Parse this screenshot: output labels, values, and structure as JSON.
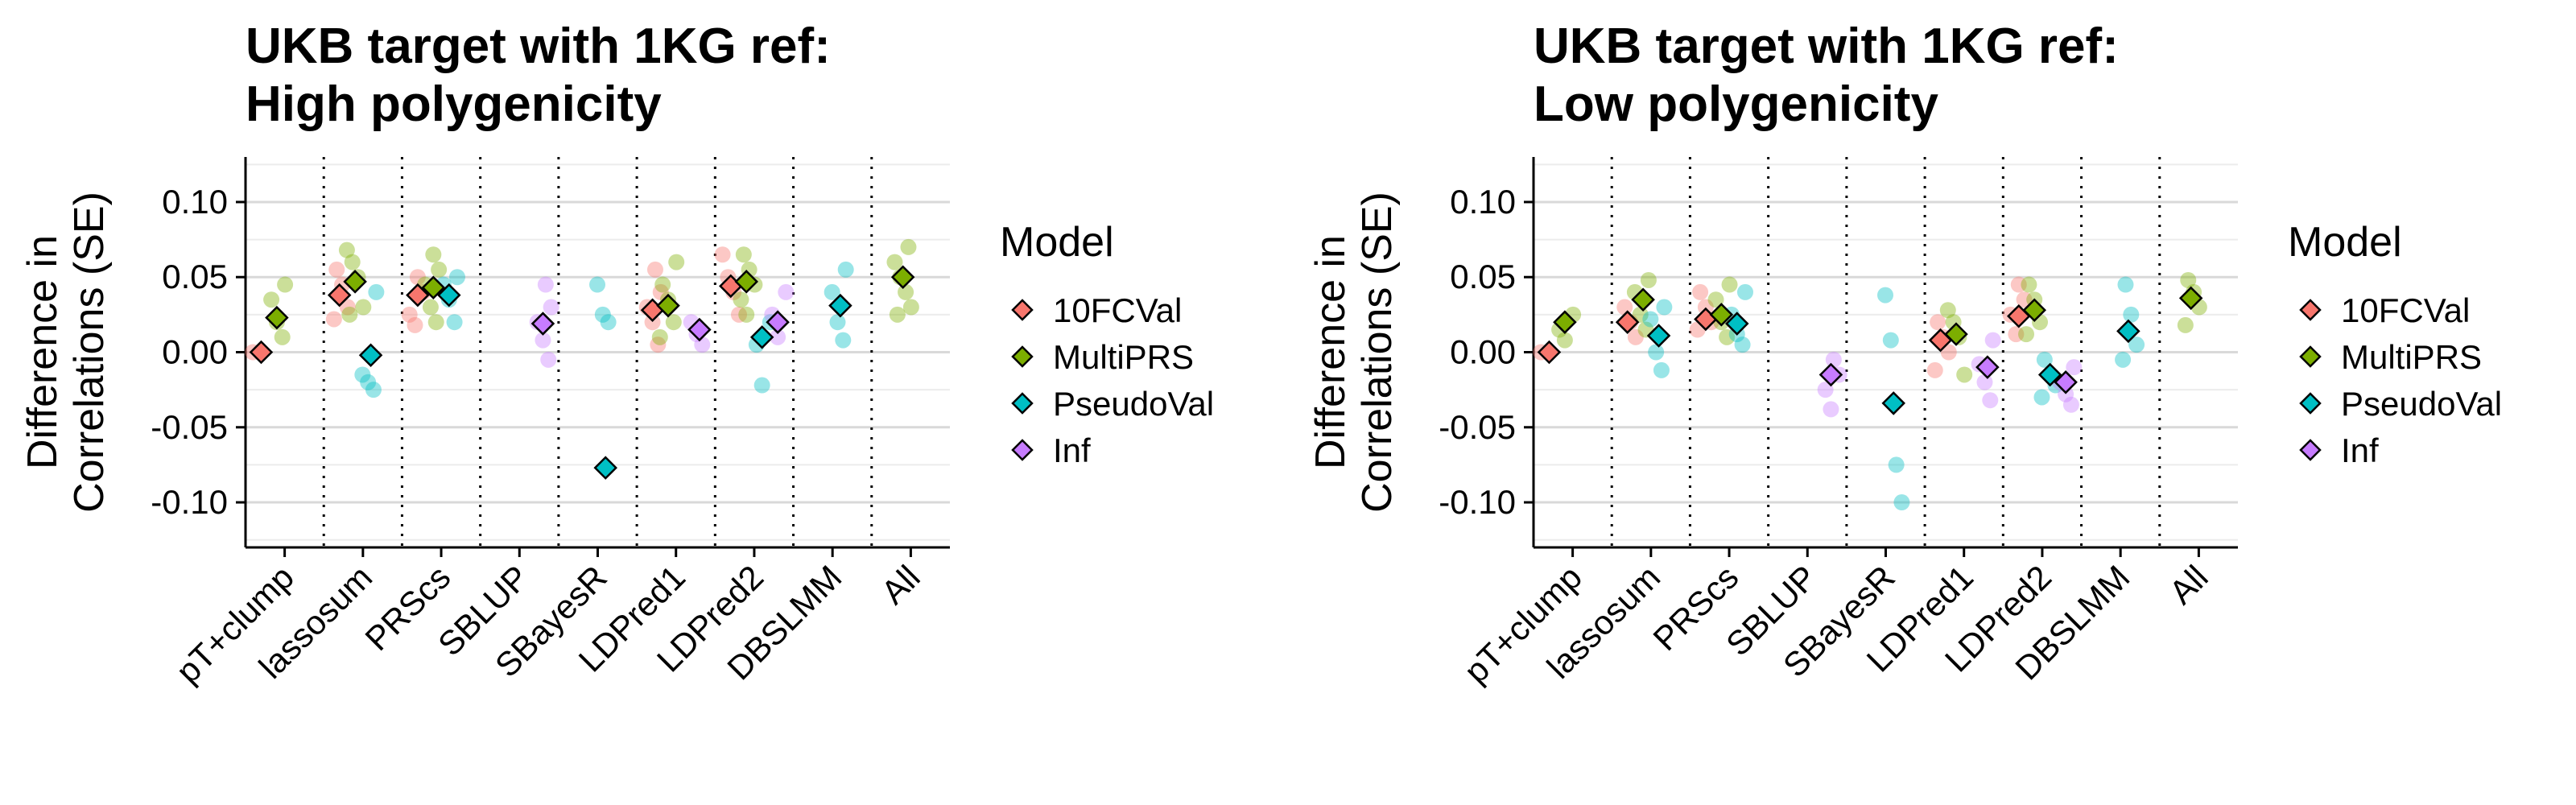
{
  "colors": {
    "10FCVal": "#F8766D",
    "MultiPRS": "#7CAE00",
    "PseudoVal": "#00BFC4",
    "Inf": "#C77CFF"
  },
  "chart_data": [
    {
      "type": "scatter",
      "title_lines": [
        "UKB target with 1KG ref:",
        "High polygenicity"
      ],
      "ylabel_lines": [
        "Difference in",
        "Correlations (SE)"
      ],
      "categories": [
        "pT+clump",
        "lassosum",
        "PRScs",
        "SBLUP",
        "SBayesR",
        "LDPred1",
        "LDPred2",
        "DBSLMM",
        "All"
      ],
      "ylim": [
        -0.13,
        0.13
      ],
      "yticks": [
        0.1,
        0.05,
        0.0,
        -0.05,
        -0.1
      ],
      "ytick_labels": [
        "0.10",
        "0.05",
        "0.00",
        "-0.05",
        "-0.10"
      ],
      "legend": {
        "title": "Model",
        "entries": [
          "10FCVal",
          "MultiPRS",
          "PseudoVal",
          "Inf"
        ],
        "position": "right"
      },
      "series": [
        {
          "name": "10FCVal",
          "x": [
            1,
            2,
            3,
            6,
            7
          ],
          "y": [
            0.0,
            0.038,
            0.038,
            0.028,
            0.044
          ],
          "se": [
            0.004,
            0.004,
            0.004,
            0.004,
            0.004
          ],
          "points": [
            [
              1,
              0.0
            ],
            [
              2,
              0.055
            ],
            [
              2,
              0.045
            ],
            [
              2,
              0.03
            ],
            [
              2,
              0.022
            ],
            [
              3,
              0.05
            ],
            [
              3,
              0.04
            ],
            [
              3,
              0.025
            ],
            [
              3,
              0.018
            ],
            [
              6,
              0.055
            ],
            [
              6,
              0.04
            ],
            [
              6,
              0.03
            ],
            [
              6,
              0.02
            ],
            [
              6,
              0.005
            ],
            [
              7,
              0.065
            ],
            [
              7,
              0.05
            ],
            [
              7,
              0.04
            ],
            [
              7,
              0.025
            ]
          ]
        },
        {
          "name": "MultiPRS",
          "x": [
            1,
            2,
            3,
            6,
            7,
            9
          ],
          "y": [
            0.023,
            0.047,
            0.043,
            0.031,
            0.047,
            0.05
          ],
          "se": [
            0.004,
            0.004,
            0.004,
            0.004,
            0.004,
            0.004
          ],
          "points": [
            [
              1,
              0.045
            ],
            [
              1,
              0.035
            ],
            [
              1,
              0.02
            ],
            [
              1,
              0.01
            ],
            [
              2,
              0.068
            ],
            [
              2,
              0.06
            ],
            [
              2,
              0.05
            ],
            [
              2,
              0.03
            ],
            [
              2,
              0.025
            ],
            [
              3,
              0.065
            ],
            [
              3,
              0.055
            ],
            [
              3,
              0.045
            ],
            [
              3,
              0.03
            ],
            [
              3,
              0.02
            ],
            [
              6,
              0.06
            ],
            [
              6,
              0.045
            ],
            [
              6,
              0.035
            ],
            [
              6,
              0.02
            ],
            [
              6,
              0.01
            ],
            [
              7,
              0.065
            ],
            [
              7,
              0.055
            ],
            [
              7,
              0.045
            ],
            [
              7,
              0.035
            ],
            [
              7,
              0.025
            ],
            [
              9,
              0.07
            ],
            [
              9,
              0.06
            ],
            [
              9,
              0.05
            ],
            [
              9,
              0.04
            ],
            [
              9,
              0.03
            ],
            [
              9,
              0.025
            ]
          ]
        },
        {
          "name": "PseudoVal",
          "x": [
            2,
            3,
            5,
            7,
            8
          ],
          "y": [
            -0.002,
            0.038,
            -0.077,
            0.01,
            0.031
          ],
          "se": [
            0.004,
            0.004,
            0.004,
            0.004,
            0.004
          ],
          "points": [
            [
              2,
              0.04
            ],
            [
              2,
              -0.015
            ],
            [
              2,
              -0.02
            ],
            [
              2,
              -0.025
            ],
            [
              3,
              0.05
            ],
            [
              3,
              0.045
            ],
            [
              3,
              0.035
            ],
            [
              3,
              0.02
            ],
            [
              5,
              0.045
            ],
            [
              5,
              0.025
            ],
            [
              5,
              0.02
            ],
            [
              7,
              0.02
            ],
            [
              7,
              0.005
            ],
            [
              7,
              -0.022
            ],
            [
              8,
              0.055
            ],
            [
              8,
              0.04
            ],
            [
              8,
              0.02
            ],
            [
              8,
              0.008
            ]
          ]
        },
        {
          "name": "Inf",
          "x": [
            4,
            6,
            7
          ],
          "y": [
            0.019,
            0.015,
            0.02
          ],
          "se": [
            0.004,
            0.004,
            0.004
          ],
          "points": [
            [
              4,
              0.045
            ],
            [
              4,
              0.03
            ],
            [
              4,
              0.02
            ],
            [
              4,
              0.008
            ],
            [
              4,
              -0.005
            ],
            [
              6,
              0.02
            ],
            [
              6,
              0.012
            ],
            [
              6,
              0.005
            ],
            [
              7,
              0.04
            ],
            [
              7,
              0.025
            ],
            [
              7,
              0.01
            ]
          ]
        }
      ]
    },
    {
      "type": "scatter",
      "title_lines": [
        "UKB target with 1KG ref:",
        "Low polygenicity"
      ],
      "ylabel_lines": [
        "Difference in",
        "Correlations (SE)"
      ],
      "categories": [
        "pT+clump",
        "lassosum",
        "PRScs",
        "SBLUP",
        "SBayesR",
        "LDPred1",
        "LDPred2",
        "DBSLMM",
        "All"
      ],
      "ylim": [
        -0.13,
        0.13
      ],
      "yticks": [
        0.1,
        0.05,
        0.0,
        -0.05,
        -0.1
      ],
      "ytick_labels": [
        "0.10",
        "0.05",
        "0.00",
        "-0.05",
        "-0.10"
      ],
      "legend": {
        "title": "Model",
        "entries": [
          "10FCVal",
          "MultiPRS",
          "PseudoVal",
          "Inf"
        ],
        "position": "right"
      },
      "series": [
        {
          "name": "10FCVal",
          "x": [
            1,
            2,
            3,
            6,
            7
          ],
          "y": [
            0.0,
            0.02,
            0.022,
            0.008,
            0.024
          ],
          "se": [
            0.006,
            0.006,
            0.006,
            0.006,
            0.006
          ],
          "points": [
            [
              1,
              0.0
            ],
            [
              2,
              0.03
            ],
            [
              2,
              0.02
            ],
            [
              2,
              0.01
            ],
            [
              3,
              0.04
            ],
            [
              3,
              0.03
            ],
            [
              3,
              0.02
            ],
            [
              3,
              0.015
            ],
            [
              6,
              0.02
            ],
            [
              6,
              0.01
            ],
            [
              6,
              0.0
            ],
            [
              6,
              -0.012
            ],
            [
              7,
              0.045
            ],
            [
              7,
              0.035
            ],
            [
              7,
              0.025
            ],
            [
              7,
              0.012
            ]
          ]
        },
        {
          "name": "MultiPRS",
          "x": [
            1,
            2,
            3,
            6,
            7,
            9
          ],
          "y": [
            0.02,
            0.035,
            0.025,
            0.012,
            0.028,
            0.036
          ],
          "se": [
            0.006,
            0.006,
            0.006,
            0.006,
            0.006,
            0.006
          ],
          "points": [
            [
              1,
              0.025
            ],
            [
              1,
              0.015
            ],
            [
              1,
              0.008
            ],
            [
              2,
              0.048
            ],
            [
              2,
              0.04
            ],
            [
              2,
              0.025
            ],
            [
              2,
              0.015
            ],
            [
              3,
              0.045
            ],
            [
              3,
              0.035
            ],
            [
              3,
              0.02
            ],
            [
              3,
              0.01
            ],
            [
              6,
              0.028
            ],
            [
              6,
              0.02
            ],
            [
              6,
              0.01
            ],
            [
              6,
              -0.015
            ],
            [
              7,
              0.045
            ],
            [
              7,
              0.035
            ],
            [
              7,
              0.02
            ],
            [
              7,
              0.012
            ],
            [
              9,
              0.048
            ],
            [
              9,
              0.04
            ],
            [
              9,
              0.03
            ],
            [
              9,
              0.018
            ]
          ]
        },
        {
          "name": "PseudoVal",
          "x": [
            2,
            3,
            5,
            7,
            8
          ],
          "y": [
            0.011,
            0.019,
            -0.034,
            -0.015,
            0.014
          ],
          "se": [
            0.006,
            0.006,
            0.006,
            0.006,
            0.006
          ],
          "points": [
            [
              2,
              0.03
            ],
            [
              2,
              0.022
            ],
            [
              2,
              0.0
            ],
            [
              2,
              -0.012
            ],
            [
              3,
              0.04
            ],
            [
              3,
              0.025
            ],
            [
              3,
              0.012
            ],
            [
              3,
              0.005
            ],
            [
              5,
              0.038
            ],
            [
              5,
              0.008
            ],
            [
              5,
              -0.075
            ],
            [
              5,
              -0.1
            ],
            [
              7,
              -0.005
            ],
            [
              7,
              -0.015
            ],
            [
              7,
              -0.022
            ],
            [
              7,
              -0.03
            ],
            [
              8,
              0.045
            ],
            [
              8,
              0.025
            ],
            [
              8,
              0.005
            ],
            [
              8,
              -0.005
            ]
          ]
        },
        {
          "name": "Inf",
          "x": [
            4,
            6,
            7
          ],
          "y": [
            -0.015,
            -0.01,
            -0.02
          ],
          "se": [
            0.006,
            0.006,
            0.006
          ],
          "points": [
            [
              4,
              -0.005
            ],
            [
              4,
              -0.015
            ],
            [
              4,
              -0.025
            ],
            [
              4,
              -0.038
            ],
            [
              6,
              0.008
            ],
            [
              6,
              -0.008
            ],
            [
              6,
              -0.02
            ],
            [
              6,
              -0.032
            ],
            [
              7,
              -0.01
            ],
            [
              7,
              -0.02
            ],
            [
              7,
              -0.028
            ],
            [
              7,
              -0.035
            ]
          ]
        }
      ]
    }
  ]
}
